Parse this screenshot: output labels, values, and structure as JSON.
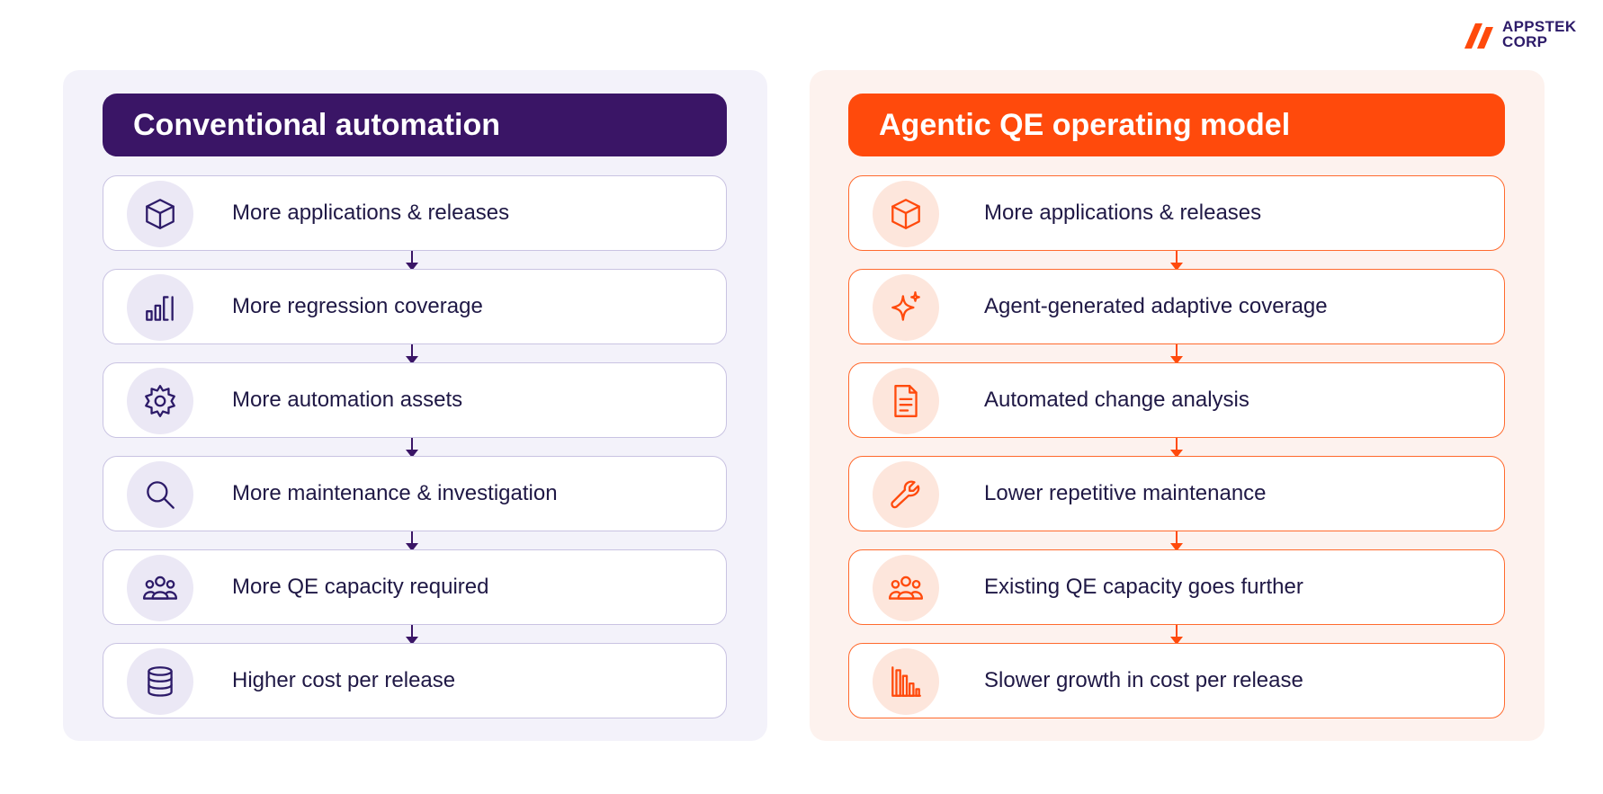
{
  "logo": {
    "line1": "APPSTEK",
    "line2": "CORP",
    "accent": "#ff4a0c"
  },
  "left_panel": {
    "title": "Conventional automation",
    "accent": "#3a1566",
    "steps": [
      {
        "label": "More applications & releases",
        "icon": "cube-icon"
      },
      {
        "label": "More regression coverage",
        "icon": "bar-chart-icon"
      },
      {
        "label": "More automation assets",
        "icon": "gear-icon"
      },
      {
        "label": "More maintenance & investigation",
        "icon": "search-icon"
      },
      {
        "label": "More QE capacity required",
        "icon": "people-icon"
      },
      {
        "label": "Higher cost per release",
        "icon": "database-icon"
      }
    ]
  },
  "right_panel": {
    "title": "Agentic QE operating model",
    "accent": "#ff4a0c",
    "steps": [
      {
        "label": "More applications & releases",
        "icon": "cube-icon"
      },
      {
        "label": "Agent-generated adaptive coverage",
        "icon": "sparkle-icon"
      },
      {
        "label": "Automated change analysis",
        "icon": "document-icon"
      },
      {
        "label": "Lower repetitive maintenance",
        "icon": "wrench-icon"
      },
      {
        "label": "Existing QE capacity goes further",
        "icon": "people-icon"
      },
      {
        "label": "Slower growth in cost per release",
        "icon": "declining-chart-icon"
      }
    ]
  }
}
